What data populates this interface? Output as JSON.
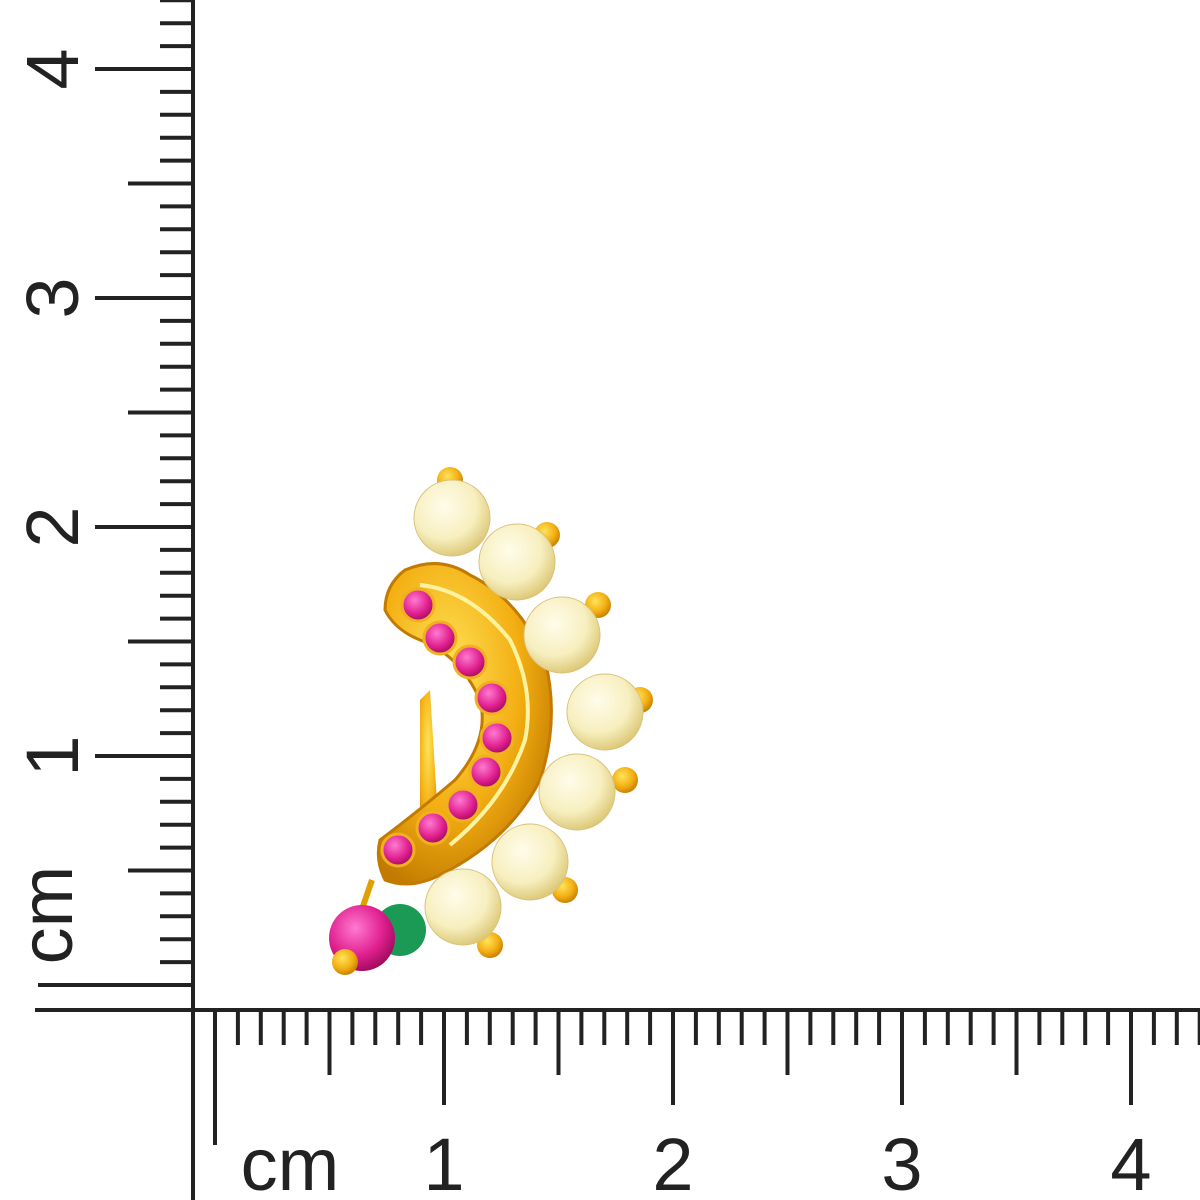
{
  "vertical_ruler": {
    "unit": "cm",
    "labels": [
      "1",
      "2",
      "3",
      "4"
    ]
  },
  "horizontal_ruler": {
    "unit": "cm",
    "labels": [
      "1",
      "2",
      "3",
      "4"
    ]
  }
}
